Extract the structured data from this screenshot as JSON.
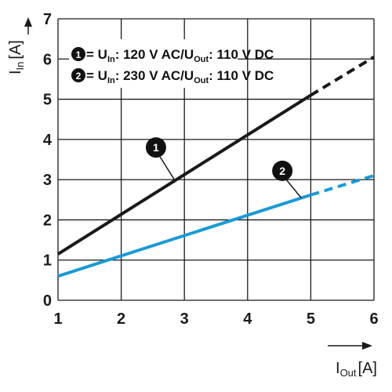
{
  "chart_data": {
    "type": "line",
    "xlabel": {
      "symbol": "I",
      "subscript": "Out",
      "unit": "[A]"
    },
    "ylabel": {
      "symbol": "I",
      "subscript": "In",
      "unit": "[A]"
    },
    "xlim": [
      1,
      6
    ],
    "ylim": [
      0,
      7
    ],
    "xticks": [
      "1",
      "2",
      "3",
      "4",
      "5",
      "6"
    ],
    "yticks": [
      "0",
      "1",
      "2",
      "3",
      "4",
      "5",
      "6",
      "7"
    ],
    "grid": true,
    "legend_position": "top-left",
    "series": [
      {
        "id": "1",
        "name_parts": [
          "= U",
          "In",
          ": 120 V AC/U",
          "Out",
          ": 110 V DC"
        ],
        "color": "#1a1a1a",
        "x": [
          1,
          5,
          6
        ],
        "y": [
          1.15,
          5.1,
          6.05
        ],
        "solid_until_x": 5
      },
      {
        "id": "2",
        "name_parts": [
          "= U",
          "In",
          ": 230 V AC/U",
          "Out",
          ": 110 V DC"
        ],
        "color": "#1a9ad6",
        "x": [
          1,
          5,
          6
        ],
        "y": [
          0.6,
          2.62,
          3.1
        ],
        "solid_until_x": 5
      }
    ],
    "annotations": [
      {
        "label": "1",
        "series": "1",
        "x": 2.55,
        "y": 3.8
      },
      {
        "label": "2",
        "series": "2",
        "x": 4.55,
        "y": 3.22
      }
    ]
  }
}
